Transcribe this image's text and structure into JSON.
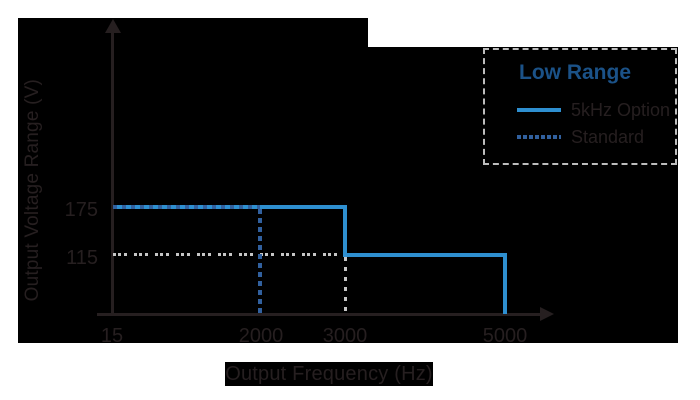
{
  "figure": {
    "y_axis_title": "Output Voltage Range (V)",
    "x_axis_title": "Output Frequency (Hz)",
    "y_tick_labels": [
      "175",
      "115"
    ],
    "x_tick_labels": [
      "15",
      "2000",
      "3000",
      "5000"
    ]
  },
  "legend": {
    "title": "Low Range",
    "items": [
      {
        "label": "5kHz Option",
        "style": "solid"
      },
      {
        "label": "Standard",
        "style": "dashed"
      }
    ]
  },
  "colors": {
    "background_margin": "#ffffff",
    "plot_background": "#000000",
    "ink_dark": "#261f20",
    "solid_line_blue": "#2e8fd0",
    "dashed_line_blue": "#31609e",
    "legend_title_blue": "#1b5288",
    "guide_line_gray": "#c6c6c6",
    "legend_border_gray": "#bdbdbd"
  },
  "chart_data": {
    "type": "line",
    "subtype": "step",
    "title": "",
    "xlabel": "Output Frequency (Hz)",
    "ylabel": "Output Voltage Range (V)",
    "x_ticks": [
      15,
      2000,
      3000,
      5000
    ],
    "y_ticks": [
      115,
      175
    ],
    "xlim": [
      15,
      5600
    ],
    "ylim": [
      0,
      230
    ],
    "grid": false,
    "legend_title": "Low Range",
    "legend_position": "top-right",
    "series": [
      {
        "name": "5kHz Option",
        "style": "solid",
        "color": "#2e8fd0",
        "points": [
          [
            15,
            175
          ],
          [
            3000,
            175
          ],
          [
            3000,
            115
          ],
          [
            5000,
            115
          ],
          [
            5000,
            0
          ]
        ]
      },
      {
        "name": "Standard",
        "style": "dashed",
        "color": "#31609e",
        "points": [
          [
            15,
            175
          ],
          [
            2000,
            175
          ],
          [
            2000,
            0
          ]
        ]
      },
      {
        "name": "115V guide (unlabeled gray dashed)",
        "style": "dashed",
        "color": "#c6c6c6",
        "points": [
          [
            15,
            115
          ],
          [
            3000,
            115
          ],
          [
            3000,
            0
          ]
        ]
      }
    ]
  }
}
